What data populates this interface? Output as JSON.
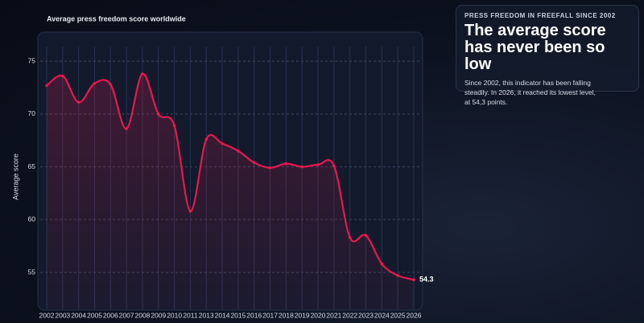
{
  "chart_data": {
    "type": "line",
    "title": "Average press freedom score worldwide",
    "y_label": "Average score",
    "categories": [
      "2002",
      "2003",
      "2004",
      "2005",
      "2006",
      "2007",
      "2008",
      "2009",
      "2010",
      "2011",
      "2013",
      "2014",
      "2015",
      "2016",
      "2017",
      "2018",
      "2019",
      "2020",
      "2021",
      "2022",
      "2023",
      "2024",
      "2025",
      "2026"
    ],
    "series": [
      {
        "name": "Average score",
        "color": "#e8174f",
        "values": [
          72.7,
          73.6,
          71.1,
          72.9,
          72.8,
          68.6,
          73.8,
          70.0,
          68.9,
          60.8,
          67.6,
          67.2,
          66.5,
          65.4,
          64.9,
          65.3,
          65.0,
          65.2,
          65.1,
          58.3,
          58.5,
          55.8,
          54.7,
          54.3
        ]
      }
    ],
    "ylim": [
      51.5,
      76
    ],
    "yticks": [
      55,
      60,
      65,
      70,
      75
    ],
    "grid": true
  },
  "panel": {
    "kicker": "PRESS FREEDOM IN FREEFALL SINCE 2002",
    "headline": "The average score has never been so low",
    "text": "Since 2002, this indicator has been falling steadily. In 2026, it reached its lowest level, at 54,3 points."
  }
}
